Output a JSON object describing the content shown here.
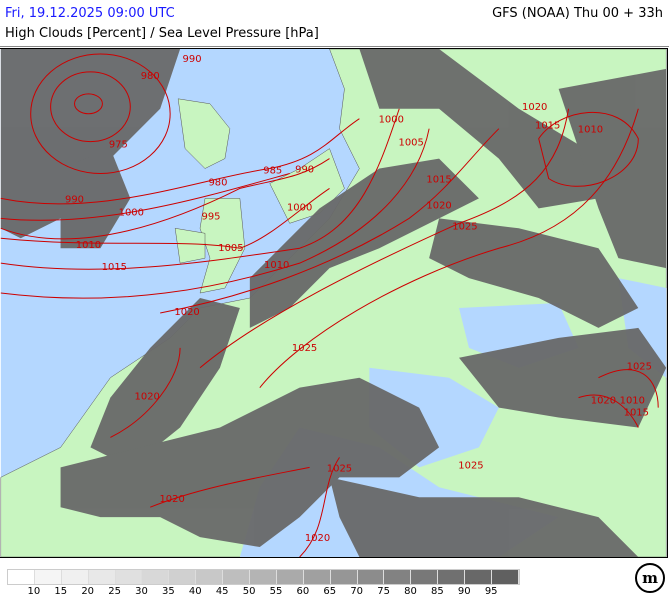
{
  "header": {
    "datetime": "Fri, 19.12.2025 09:00 UTC",
    "model": "GFS (NOAA) Thu 00 + 33h",
    "title": "High Clouds [Percent] / Sea Level Pressure [hPa]"
  },
  "colors": {
    "sea": "#b4d7ff",
    "land": "#c8f5c0",
    "cloud": "#696969",
    "isobar": "#cc0000",
    "header_date": "#1a1aff"
  },
  "isobar_labels": [
    "990",
    "980",
    "975",
    "990",
    "980",
    "985",
    "990",
    "1000",
    "995",
    "1000",
    "1005",
    "1010",
    "1015",
    "1010",
    "1020",
    "1000",
    "1005",
    "1015",
    "1020",
    "1025",
    "1020",
    "1015",
    "1010",
    "1025",
    "1020",
    "1020",
    "1025",
    "1025",
    "1020",
    "1025",
    "1020",
    "1010",
    "1015"
  ],
  "legend": {
    "colors": [
      "#ffffff",
      "#f5f5f5",
      "#f0f0f0",
      "#e8e8e8",
      "#e0e0e0",
      "#d8d8d8",
      "#d0d0d0",
      "#c8c8c8",
      "#bebebe",
      "#b4b4b4",
      "#aaaaaa",
      "#a0a0a0",
      "#969696",
      "#8c8c8c",
      "#828282",
      "#787878",
      "#707070",
      "#686868",
      "#606060"
    ],
    "labels": [
      "10",
      "15",
      "20",
      "25",
      "30",
      "35",
      "40",
      "45",
      "50",
      "55",
      "60",
      "65",
      "70",
      "75",
      "80",
      "85",
      "90",
      "95"
    ]
  },
  "logo": "m"
}
